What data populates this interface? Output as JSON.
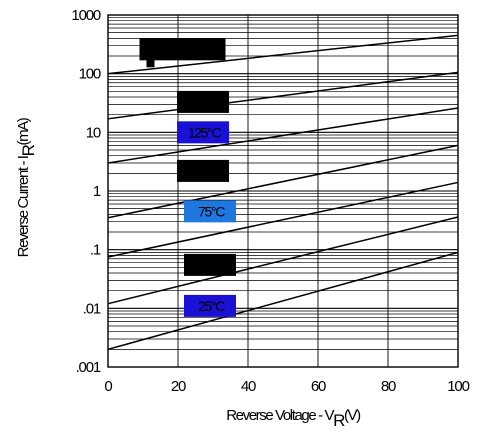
{
  "chart_data": {
    "type": "line",
    "y_scale": "log",
    "x_ticks": [
      "0",
      "20",
      "40",
      "60",
      "80",
      "100"
    ],
    "y_ticks": [
      "1000",
      "100",
      "10",
      "1",
      ".1",
      ".01",
      ".001"
    ],
    "xlim": [
      0,
      100
    ],
    "ylim": [
      0.001,
      1000
    ],
    "grid": true,
    "xlabel_main": "Reverse Voltage - V",
    "xlabel_sub": "R",
    "xlabel_unit": "(V)",
    "ylabel_main": "Reverse Current - I",
    "ylabel_sub": "R",
    "ylabel_unit": "(mA)",
    "series": [
      {
        "name": "",
        "x": [
          0,
          100
        ],
        "y": [
          100,
          450
        ],
        "label_color": "#000000",
        "label_x": 22,
        "label_y": 260
      },
      {
        "name": "",
        "x": [
          0,
          100
        ],
        "y": [
          17,
          105
        ],
        "label_color": "#000000",
        "label_x": 26,
        "label_y": 33
      },
      {
        "name": "125°C",
        "x": [
          0,
          100
        ],
        "y": [
          3,
          26
        ],
        "label_color": "#1a10d6",
        "label_x": 26,
        "label_y": 10
      },
      {
        "name": "",
        "x": [
          0,
          100
        ],
        "y": [
          0.35,
          6
        ],
        "label_color": "#000000",
        "label_x": 26,
        "label_y": 2.2
      },
      {
        "name": "75°C",
        "x": [
          0,
          100
        ],
        "y": [
          0.075,
          1.4
        ],
        "label_color": "#1e78e0",
        "label_x": 28,
        "label_y": 0.45
      },
      {
        "name": "",
        "x": [
          0,
          100
        ],
        "y": [
          0.012,
          0.36
        ],
        "label_color": "#000000",
        "label_x": 28,
        "label_y": 0.055
      },
      {
        "name": "25°C",
        "x": [
          0,
          100
        ],
        "y": [
          0.002,
          0.09
        ],
        "label_color": "#1a10d6",
        "label_x": 28,
        "label_y": 0.011
      }
    ]
  }
}
